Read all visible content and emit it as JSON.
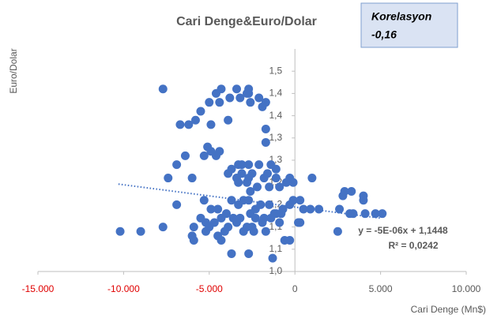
{
  "chart_data": {
    "type": "scatter",
    "title": "Cari Denge&Euro/Dolar",
    "x_label": "Cari Denge (Mn$)",
    "y_label": "Euro/Dolar",
    "annotation": [
      "Korelasyon",
      "-0,16"
    ],
    "trendline": {
      "slope": -5e-06,
      "intercept": 1.1448,
      "xrange": [
        -10300,
        5000
      ],
      "labels": [
        "y = -5E-06x + 1,1448",
        "R² = 0,0242"
      ]
    },
    "color": "#4472c4",
    "negative_tick_color": "#e00000",
    "xlim": [
      -15000,
      10000
    ],
    "ylim": [
      1.0,
      1.5
    ],
    "xticks": [
      {
        "value": -15000,
        "label": "-15.000"
      },
      {
        "value": -10000,
        "label": "-10.000"
      },
      {
        "value": -5000,
        "label": "-5.000"
      },
      0,
      {
        "value": 5000,
        "label": "5.000"
      },
      {
        "value": 10000,
        "label": "10.000"
      }
    ],
    "yticks": [
      {
        "value": 1.0,
        "label": "1,0"
      },
      {
        "value": 1.05,
        "label": "1,1"
      },
      {
        "value": 1.1,
        "label": "1,1"
      },
      {
        "value": 1.15,
        "label": "1,2"
      },
      {
        "value": 1.2,
        "label": "1,2"
      },
      {
        "value": 1.25,
        "label": "1,3"
      },
      {
        "value": 1.3,
        "label": "1,3"
      },
      {
        "value": 1.35,
        "label": "1,4"
      },
      {
        "value": 1.4,
        "label": "1,4"
      },
      {
        "value": 1.45,
        "label": "1,5"
      }
    ],
    "x": [
      -7700,
      -6700,
      -6200,
      -5800,
      -5500,
      -5000,
      -4600,
      -4300,
      -3800,
      -3400,
      -3200,
      -2800,
      -2700,
      -2600,
      -2100,
      -1900,
      -1700,
      -4900,
      -3900,
      -1700,
      -1700,
      -4400,
      -2700,
      -6400,
      -5100,
      -4900,
      -4600,
      -4400,
      -5300,
      -6900,
      -7400,
      -6000,
      -3700,
      -3300,
      -3100,
      -2700,
      -2100,
      -1400,
      -1100,
      -3900,
      -3400,
      -3100,
      -2700,
      -2500,
      -1800,
      -1600,
      -300,
      -1100,
      1000,
      -3300,
      -2800,
      -2600,
      -2200,
      -1500,
      -900,
      -100,
      -500,
      -6900,
      -5300,
      -4900,
      -4500,
      -4000,
      -3700,
      -3300,
      -3000,
      -2700,
      -2300,
      -2000,
      -1500,
      -1100,
      -700,
      -300,
      -100,
      300,
      500,
      900,
      1400,
      -5500,
      -5200,
      -4700,
      -4300,
      -3600,
      -3200,
      -2600,
      -2300,
      -1800,
      -1200,
      -800,
      -5900,
      -5000,
      -3900,
      -3400,
      -2800,
      -2500,
      -1900,
      -1400,
      -900,
      200,
      -6000,
      -5200,
      -4500,
      -4100,
      -3000,
      -2400,
      -1700,
      -10200,
      -9000,
      -7700,
      -600,
      -5900,
      -4300,
      -3700,
      -2700,
      -1300,
      -300,
      300,
      2600,
      2800,
      2900,
      3300,
      4000,
      4000,
      3400,
      4100,
      2500,
      4700,
      5100,
      3200
    ],
    "values": [
      1.41,
      1.33,
      1.33,
      1.34,
      1.36,
      1.38,
      1.4,
      1.41,
      1.39,
      1.41,
      1.39,
      1.4,
      1.41,
      1.38,
      1.39,
      1.37,
      1.38,
      1.33,
      1.34,
      1.32,
      1.29,
      1.38,
      1.4,
      1.26,
      1.28,
      1.27,
      1.26,
      1.27,
      1.26,
      1.24,
      1.21,
      1.21,
      1.23,
      1.24,
      1.24,
      1.24,
      1.24,
      1.24,
      1.23,
      1.22,
      1.21,
      1.22,
      1.21,
      1.22,
      1.21,
      1.22,
      1.21,
      1.21,
      1.21,
      1.2,
      1.2,
      1.18,
      1.19,
      1.19,
      1.19,
      1.2,
      1.2,
      1.15,
      1.16,
      1.14,
      1.14,
      1.13,
      1.16,
      1.15,
      1.16,
      1.16,
      1.14,
      1.15,
      1.15,
      1.13,
      1.14,
      1.15,
      1.16,
      1.16,
      1.14,
      1.14,
      1.14,
      1.12,
      1.11,
      1.11,
      1.12,
      1.12,
      1.12,
      1.13,
      1.12,
      1.12,
      1.13,
      1.13,
      1.1,
      1.1,
      1.1,
      1.11,
      1.1,
      1.1,
      1.11,
      1.12,
      1.11,
      1.11,
      1.08,
      1.09,
      1.08,
      1.09,
      1.09,
      1.09,
      1.09,
      1.09,
      1.09,
      1.1,
      1.07,
      1.07,
      1.07,
      1.04,
      1.04,
      1.03,
      1.07,
      1.11,
      1.14,
      1.17,
      1.18,
      1.18,
      1.17,
      1.16,
      1.13,
      1.13,
      1.09,
      1.13,
      1.13,
      1.13
    ]
  }
}
